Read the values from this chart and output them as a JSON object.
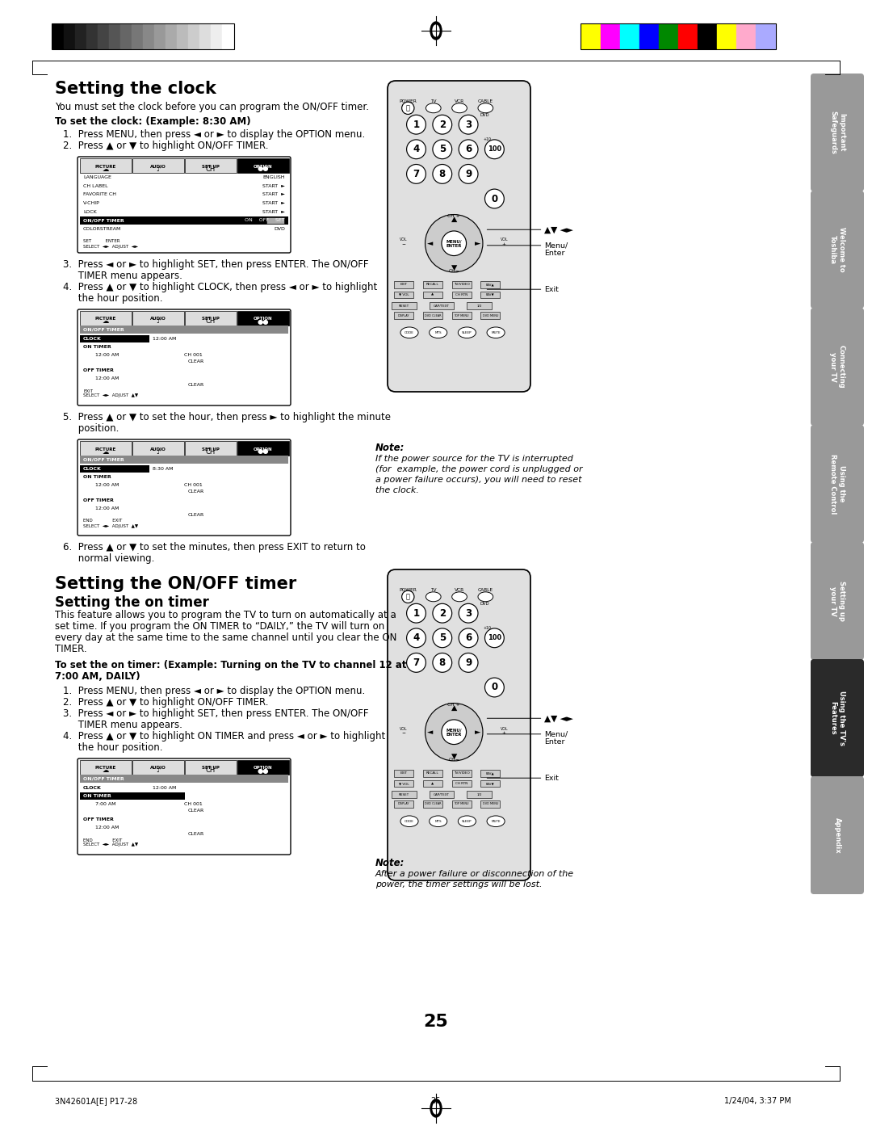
{
  "page_bg": "#ffffff",
  "page_num": "25",
  "footer_left": "3N42601A[E] P17-28",
  "footer_center": "25",
  "footer_right": "1/24/04, 3:37 PM",
  "header_grayscale_colors": [
    "#000000",
    "#111111",
    "#222222",
    "#333333",
    "#444444",
    "#555555",
    "#666666",
    "#777777",
    "#888888",
    "#999999",
    "#aaaaaa",
    "#bbbbbb",
    "#cccccc",
    "#dddddd",
    "#eeeeee",
    "#ffffff"
  ],
  "header_color_bars": [
    "#ffff00",
    "#ff00ff",
    "#00ffff",
    "#0000ff",
    "#008800",
    "#ff0000",
    "#000000",
    "#ffff00",
    "#ffaacc",
    "#aaaaff"
  ],
  "sidebar_tabs": [
    {
      "label": "Important\nSafeguards",
      "highlight": false
    },
    {
      "label": "Welcome to\nToshiba",
      "highlight": false
    },
    {
      "label": "Connecting\nyour TV",
      "highlight": false
    },
    {
      "label": "Using the\nRemote Control",
      "highlight": false
    },
    {
      "label": "Setting up\nyour TV",
      "highlight": false
    },
    {
      "label": "Using the TV's\nFeatures",
      "highlight": true
    },
    {
      "label": "Appendix",
      "highlight": false
    }
  ],
  "section1_title": "Setting the clock",
  "section1_intro": "You must set the clock before you can program the ON/OFF timer.",
  "section1_bold": "To set the clock: (Example: 8:30 AM)",
  "section1_steps": [
    "1.  Press MENU, then press ◄ or ► to display the OPTION menu.",
    "2.  Press ▲ or ▼ to highlight ON/OFF TIMER."
  ],
  "section1_steps2_line1": "3.  Press ◄ or ► to highlight SET, then press ENTER. The ON/OFF",
  "section1_steps2_line2": "     TIMER menu appears.",
  "section1_steps2_line3": "4.  Press ▲ or ▼ to highlight CLOCK, then press ◄ or ► to highlight",
  "section1_steps2_line4": "     the hour position.",
  "section1_step5_line1": "5.  Press ▲ or ▼ to set the hour, then press ► to highlight the minute",
  "section1_step5_line2": "     position.",
  "section1_step6_line1": "6.  Press ▲ or ▼ to set the minutes, then press EXIT to return to",
  "section1_step6_line2": "     normal viewing.",
  "section2_title": "Setting the ON/OFF timer",
  "section2_sub": "Setting the on timer",
  "section2_intro_lines": [
    "This feature allows you to program the TV to turn on automatically at a",
    "set time. If you program the ON TIMER to “DAILY,” the TV will turn on",
    "every day at the same time to the same channel until you clear the ON",
    "TIMER."
  ],
  "section2_bold_line1": "To set the on timer: (Example: Turning on the TV to channel 12 at",
  "section2_bold_line2": "7:00 AM, DAILY)",
  "section2_steps": [
    "1.  Press MENU, then press ◄ or ► to display the OPTION menu.",
    "2.  Press ▲ or ▼ to highlight ON/OFF TIMER.",
    "3.  Press ◄ or ► to highlight SET, then press ENTER. The ON/OFF",
    "     TIMER menu appears.",
    "4.  Press ▲ or ▼ to highlight ON TIMER and press ◄ or ► to highlight",
    "     the hour position."
  ],
  "note1_title": "Note:",
  "note1_text": [
    "If the power source for the TV is interrupted",
    "(for  example, the power cord is unplugged or",
    "a power failure occurs), you will need to reset",
    "the clock."
  ],
  "note2_title": "Note:",
  "note2_text": [
    "After a power failure or disconnection of the",
    "power, the timer settings will be lost."
  ]
}
